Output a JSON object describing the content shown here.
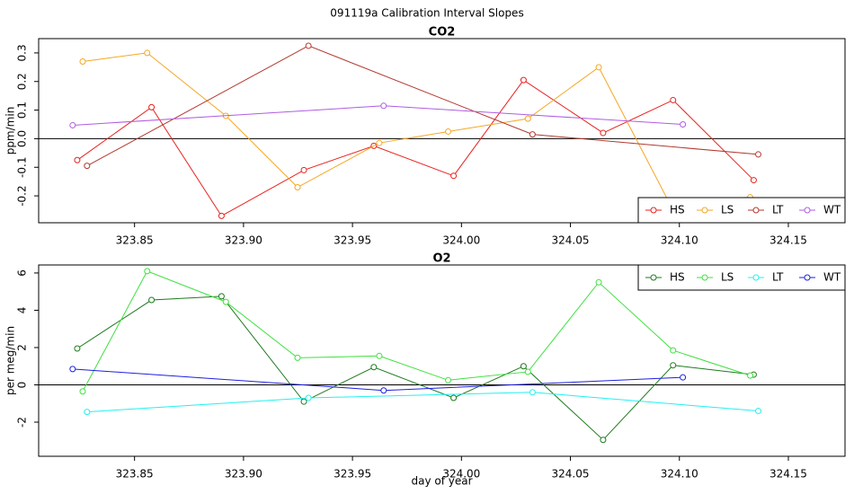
{
  "title": "091119a   Calibration Interval Slopes",
  "chart_data": [
    {
      "type": "line",
      "title": "CO2",
      "y_label": "ppm/min",
      "xlim": [
        323.806,
        324.176
      ],
      "xticks": [
        323.85,
        {
          "value": 323.9,
          "label": "323.90"
        },
        323.95,
        {
          "value": 324.0,
          "label": "324.00"
        },
        324.05,
        {
          "value": 324.1,
          "label": "324.10"
        },
        324.15
      ],
      "ylim": [
        -0.294,
        0.35
      ],
      "yticks": [
        -0.2,
        -0.1,
        {
          "value": 0,
          "label": "0.0"
        },
        0.1,
        0.2,
        0.3
      ],
      "hline": 0,
      "legend": "bottom-right",
      "series": [
        {
          "name": "HS",
          "color": "#e8201c",
          "x": [
            323.8237,
            323.8578,
            323.8899,
            323.9277,
            323.9598,
            323.9964,
            324.0285,
            324.065,
            324.0971,
            324.1341
          ],
          "values": [
            -0.075,
            0.11,
            -0.27,
            -0.11,
            -0.025,
            -0.13,
            0.205,
            0.02,
            0.135,
            -0.145
          ]
        },
        {
          "name": "LS",
          "color": "#f5a623",
          "x": [
            323.8262,
            323.8558,
            323.8919,
            323.9248,
            323.9623,
            323.9939,
            324.0305,
            324.063,
            324.0951,
            324.1325
          ],
          "values": [
            0.27,
            0.3,
            0.08,
            -0.17,
            -0.015,
            0.025,
            0.07,
            0.25,
            -0.22,
            -0.205
          ]
        },
        {
          "name": "LT",
          "color": "#b0392e",
          "x": [
            323.8282,
            323.9298,
            324.0326,
            324.1362
          ],
          "values": [
            -0.095,
            0.325,
            0.015,
            -0.055
          ]
        },
        {
          "name": "WT",
          "color": "#b05ce0",
          "x": [
            323.8216,
            323.9643,
            324.1016
          ],
          "values": [
            0.047,
            0.115,
            0.05
          ]
        }
      ]
    },
    {
      "type": "line",
      "title": "O2",
      "y_label": "per meg/min",
      "x_label": "day of year",
      "xlim": [
        323.806,
        324.176
      ],
      "xticks": [
        323.85,
        {
          "value": 323.9,
          "label": "323.90"
        },
        323.95,
        {
          "value": 324.0,
          "label": "324.00"
        },
        324.05,
        {
          "value": 324.1,
          "label": "324.10"
        },
        324.15
      ],
      "ylim": [
        -3.83,
        6.43
      ],
      "yticks": [
        -2,
        0,
        2,
        4,
        6
      ],
      "hline": 0,
      "legend": "top-right",
      "series": [
        {
          "name": "HS",
          "color": "#1e7a1e",
          "x": [
            323.8237,
            323.8578,
            323.8899,
            323.9277,
            323.9598,
            323.9964,
            324.0285,
            324.065,
            324.0971,
            324.1341
          ],
          "values": [
            1.95,
            4.55,
            4.75,
            -0.9,
            0.95,
            -0.7,
            1.0,
            -2.95,
            1.05,
            0.55
          ]
        },
        {
          "name": "LS",
          "color": "#3fe03f",
          "x": [
            323.8262,
            323.8558,
            323.8919,
            323.9248,
            323.9623,
            323.9939,
            324.0305,
            324.063,
            324.0971,
            324.1325
          ],
          "values": [
            -0.35,
            6.1,
            4.45,
            1.45,
            1.55,
            0.25,
            0.7,
            5.5,
            1.85,
            0.5
          ]
        },
        {
          "name": "LT",
          "color": "#22f0f0",
          "x": [
            323.8282,
            323.9298,
            324.0326,
            324.1362
          ],
          "values": [
            -1.45,
            -0.7,
            -0.4,
            -1.4
          ]
        },
        {
          "name": "WT",
          "color": "#1e1ee0",
          "x": [
            323.8216,
            323.9643,
            324.1016
          ],
          "values": [
            0.85,
            -0.3,
            0.4
          ]
        }
      ]
    }
  ]
}
